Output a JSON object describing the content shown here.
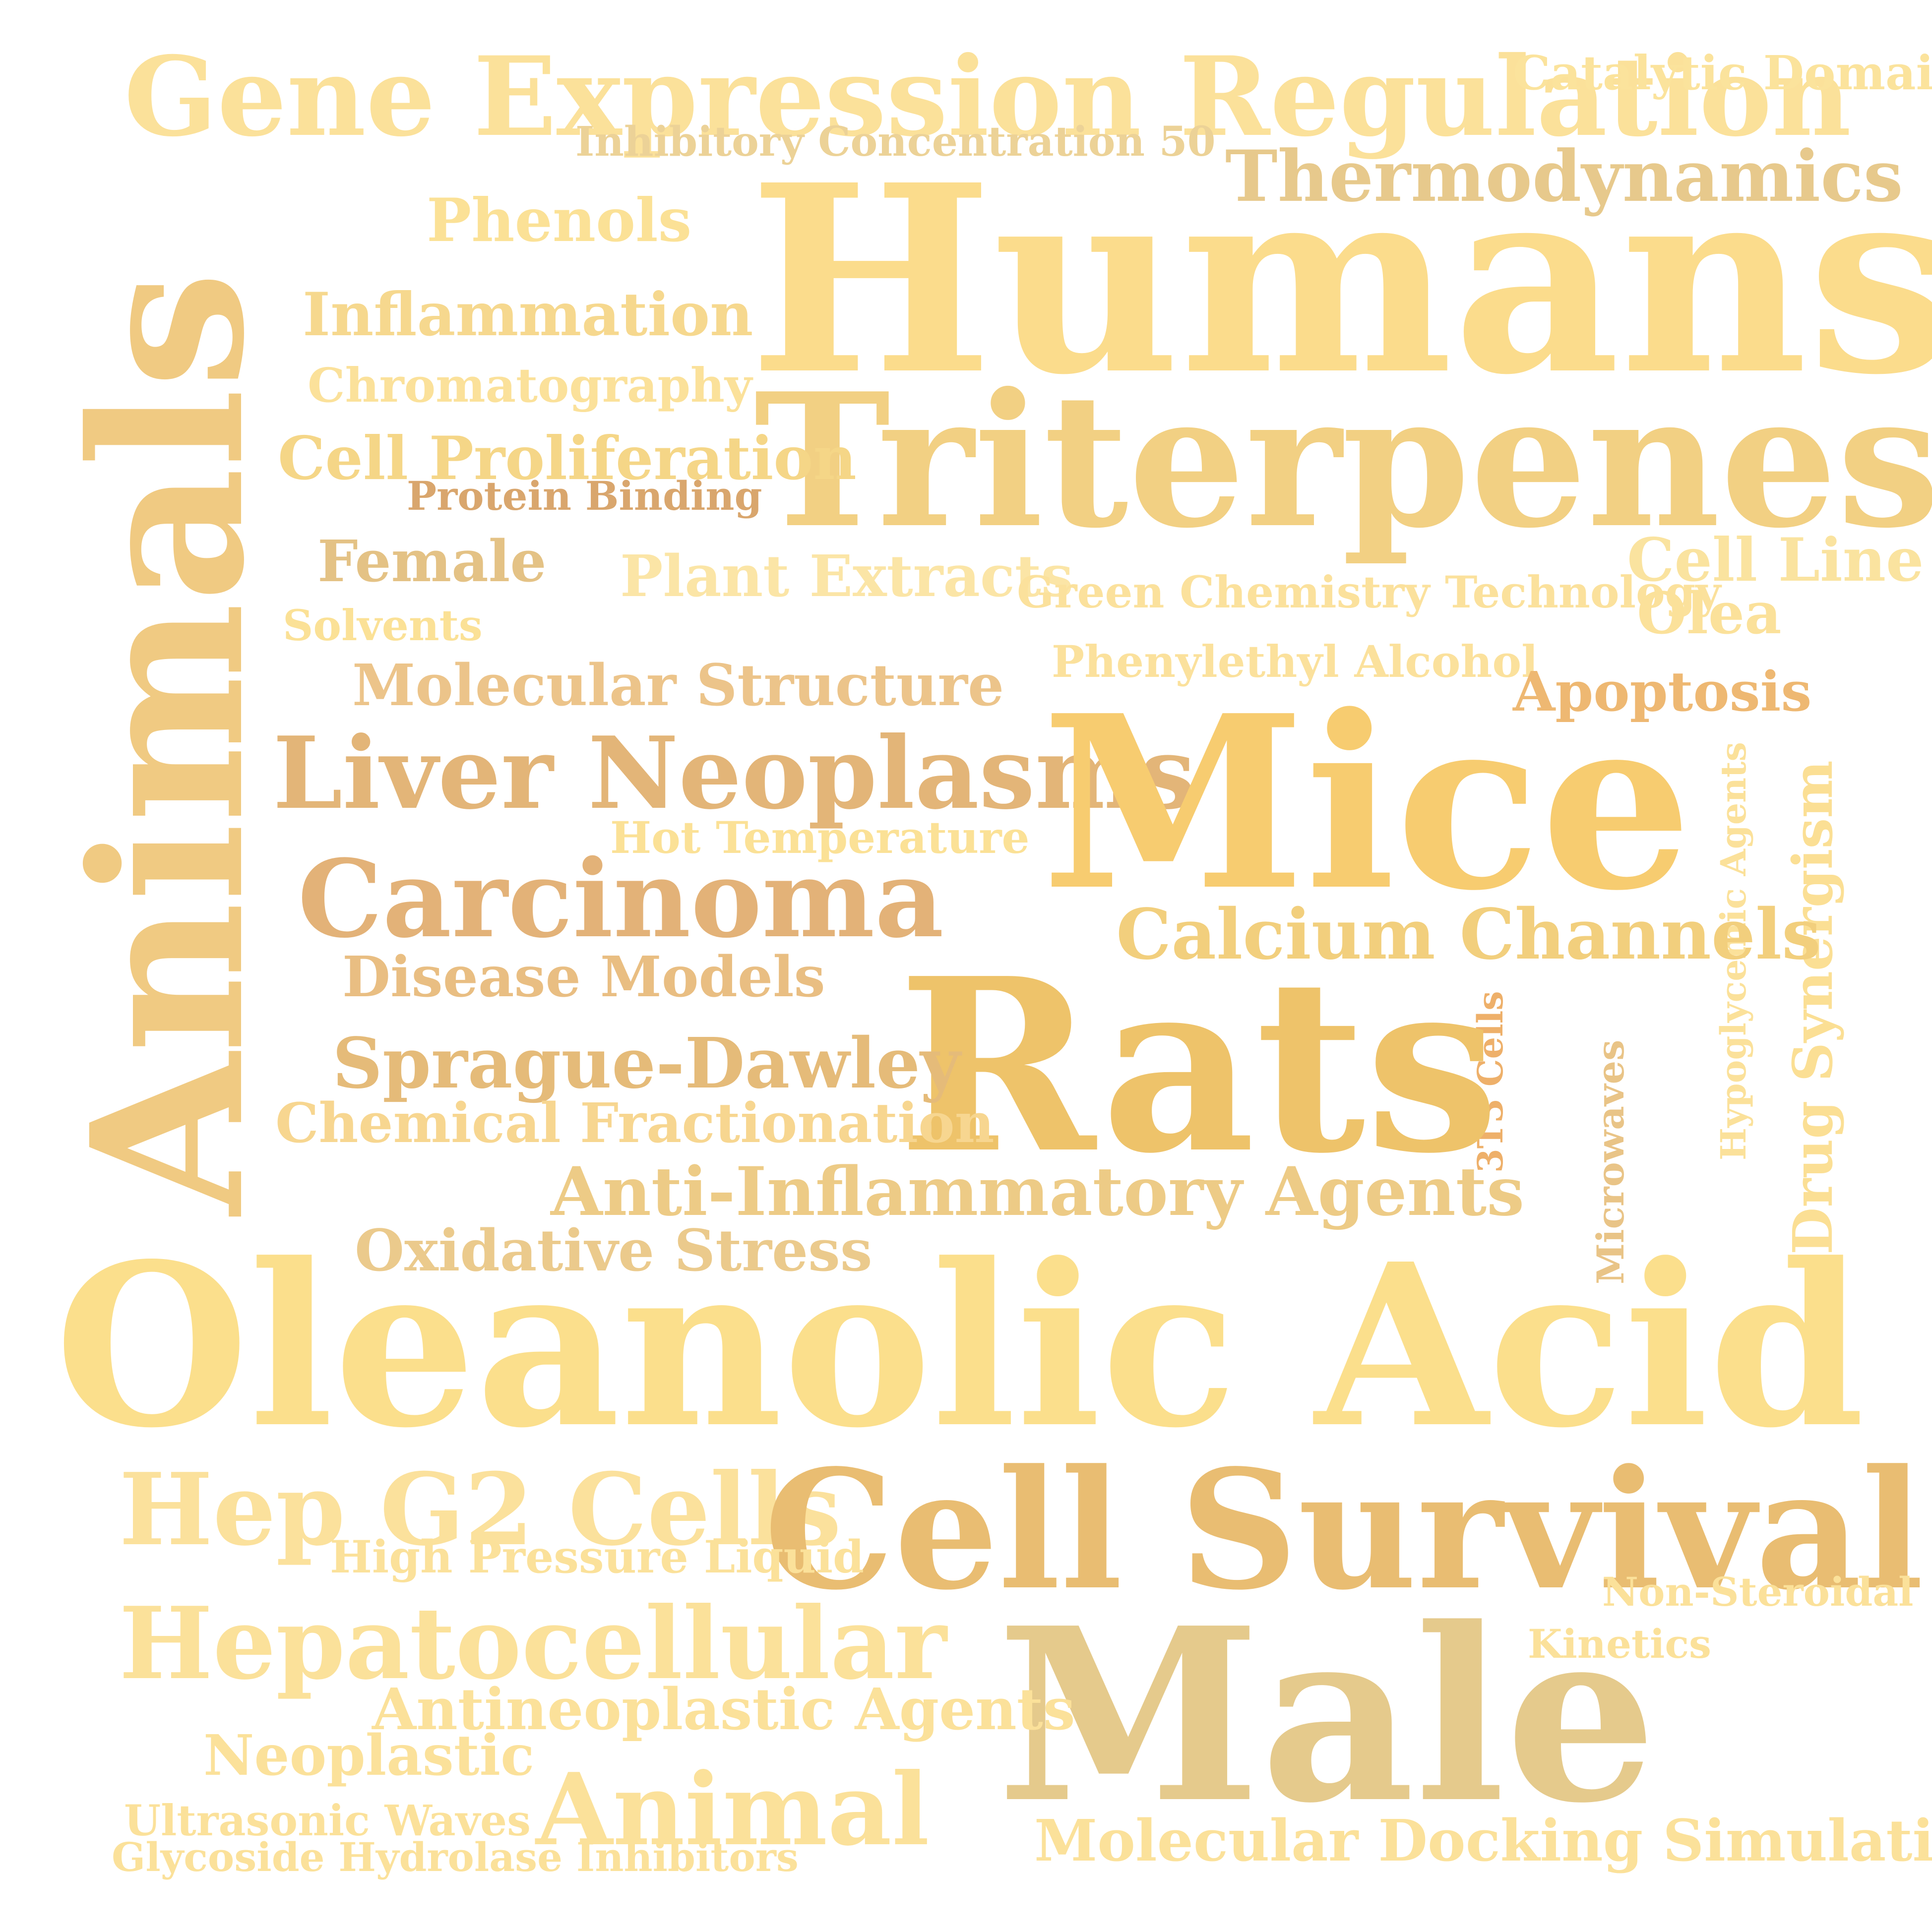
{
  "words": [
    {
      "text": "Gene Expression Regulation",
      "color": "#fbe19a"
    },
    {
      "text": "Catalytic Domain",
      "color": "#fbe39c"
    },
    {
      "text": "Inhibitory Concentration 50",
      "color": "#ecd297"
    },
    {
      "text": "Thermodynamics",
      "color": "#e7c98c"
    },
    {
      "text": "Phenols",
      "color": "#fbe196"
    },
    {
      "text": "Humans",
      "color": "#fbdc8c"
    },
    {
      "text": "Inflammation",
      "color": "#f6d88e"
    },
    {
      "text": "Chromatography",
      "color": "#fbe19a"
    },
    {
      "text": "Triterpenes",
      "color": "#f2d083"
    },
    {
      "text": "Cell Proliferation",
      "color": "#f5d687"
    },
    {
      "text": "Protein Binding",
      "color": "#d9a66d"
    },
    {
      "text": "Animals",
      "color": "#f0ca82"
    },
    {
      "text": "Female",
      "color": "#e4c285"
    },
    {
      "text": "Plant Extracts",
      "color": "#fbe5a6"
    },
    {
      "text": "Cell Line",
      "color": "#fae39f"
    },
    {
      "text": "Green Chemistry Technology",
      "color": "#fbe19c"
    },
    {
      "text": "Olea",
      "color": "#fbe19a"
    },
    {
      "text": "Solvents",
      "color": "#fbe196"
    },
    {
      "text": "Phenylethyl Alcohol",
      "color": "#fbe19c"
    },
    {
      "text": "Molecular Structure",
      "color": "#ecc48a"
    },
    {
      "text": "Apoptosis",
      "color": "#eeb872"
    },
    {
      "text": "Liver Neoplasms",
      "color": "#e3b578"
    },
    {
      "text": "Mice",
      "color": "#f7cc70"
    },
    {
      "text": "Hot Temperature",
      "color": "#fbe196"
    },
    {
      "text": "Hypoglycemic Agents",
      "color": "#fbe19a"
    },
    {
      "text": "Drug Synergism",
      "color": "#fbdf94"
    },
    {
      "text": "Carcinoma",
      "color": "#e3b278"
    },
    {
      "text": "Calcium Channels",
      "color": "#f2cf7d"
    },
    {
      "text": "Disease Models",
      "color": "#e9be82"
    },
    {
      "text": "3T3 Cells",
      "color": "#eeb06a"
    },
    {
      "text": "Microwaves",
      "color": "#e9c487"
    },
    {
      "text": "Rats",
      "color": "#eec36a"
    },
    {
      "text": "Sprague-Dawley",
      "color": "#e5bb79"
    },
    {
      "text": "Chemical Fractionation",
      "color": "#f7d690"
    },
    {
      "text": "Anti-Inflammatory Agents",
      "color": "#edcb86"
    },
    {
      "text": "Oxidative Stress",
      "color": "#ebca8c"
    },
    {
      "text": "Oleanolic Acid",
      "color": "#fbdf8c"
    },
    {
      "text": "Hep G2 Cells",
      "color": "#fbe19c"
    },
    {
      "text": "Cell Survival",
      "color": "#e9bd72"
    },
    {
      "text": "High Pressure Liquid",
      "color": "#fbe19a"
    },
    {
      "text": "Non-Steroidal",
      "color": "#fbe19a"
    },
    {
      "text": "Hepatocellular",
      "color": "#fbe19a"
    },
    {
      "text": "Kinetics",
      "color": "#fbe19a"
    },
    {
      "text": "Male",
      "color": "#e5ca8c"
    },
    {
      "text": "Antineoplastic Agents",
      "color": "#fbe19a"
    },
    {
      "text": "Neoplastic",
      "color": "#fbe19a"
    },
    {
      "text": "Animal",
      "color": "#fbe19a"
    },
    {
      "text": "Ultrasonic Waves",
      "color": "#fbe19a"
    },
    {
      "text": "Glycoside Hydrolase Inhibitors",
      "color": "#fbe19a"
    },
    {
      "text": "Molecular Docking Simulation",
      "color": "#fbe19a"
    }
  ]
}
